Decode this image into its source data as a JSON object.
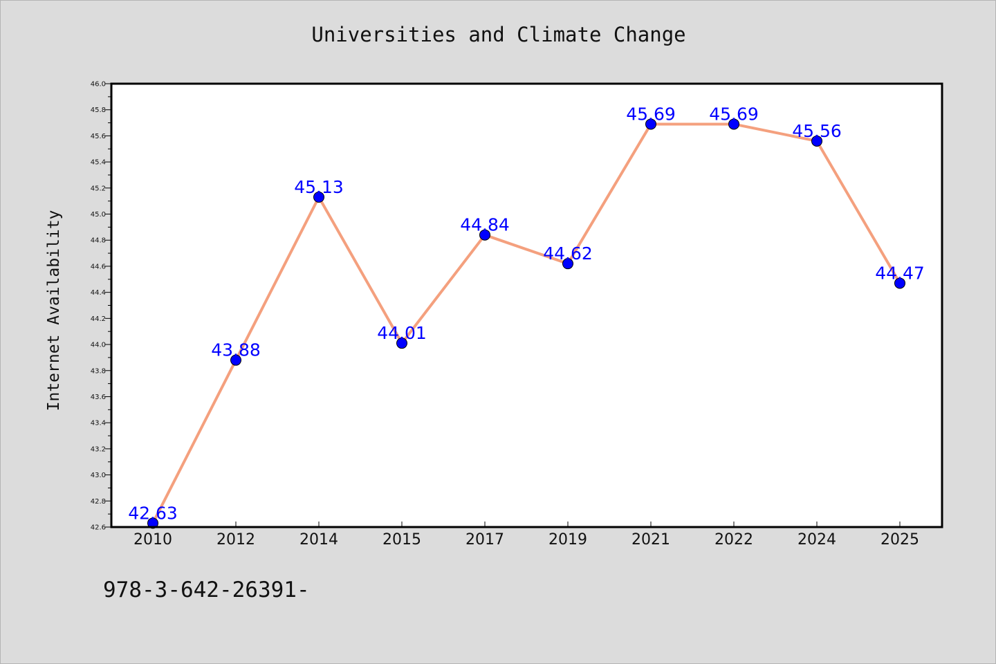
{
  "chart_data": {
    "type": "line",
    "title": "Universities and Climate Change",
    "xlabel": "",
    "ylabel": "Internet Availability",
    "categories": [
      "2010",
      "2012",
      "2014",
      "2015",
      "2017",
      "2019",
      "2021",
      "2022",
      "2024",
      "2025"
    ],
    "series": [
      {
        "values": [
          42.63,
          43.88,
          45.13,
          44.01,
          44.84,
          44.62,
          45.69,
          45.69,
          45.56,
          44.47
        ]
      }
    ],
    "data_labels": [
      "42.63",
      "43.88",
      "45.13",
      "44.01",
      "44.84",
      "44.62",
      "45.69",
      "45.69",
      "45.56",
      "44.47"
    ],
    "ylim": [
      42.6,
      46.0
    ],
    "yticks": [
      "42.6",
      "42.8",
      "43.0",
      "43.2",
      "43.4",
      "43.6",
      "43.8",
      "44.0",
      "44.2",
      "44.4",
      "44.6",
      "44.8",
      "45.0",
      "45.2",
      "45.4",
      "45.6",
      "45.8",
      "46.0"
    ],
    "grid": false,
    "colors": {
      "line": "#f4a07e",
      "marker": "#0000ff",
      "data_label": "#0000ff",
      "plot_background": "#ffffff",
      "figure_background": "#dcdcdc"
    }
  },
  "footer": {
    "text": "978-3-642-26391-"
  }
}
